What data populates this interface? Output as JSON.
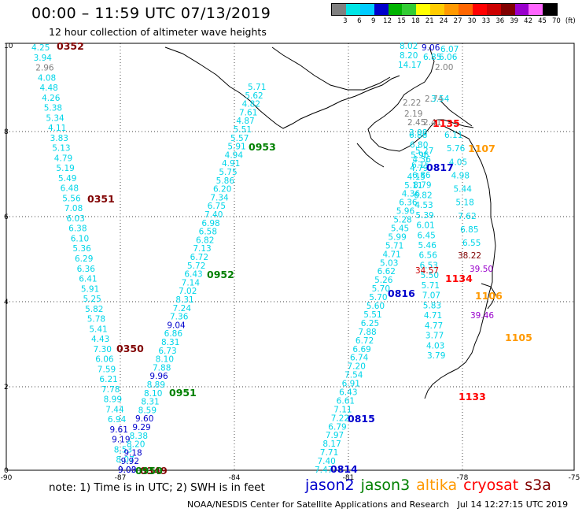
{
  "header": {
    "title": "00:00 – 11:59 UTC 07/13/2019",
    "subtitle": "12 hour collection of altimeter wave heights"
  },
  "color_scale": {
    "labels": [
      "3",
      "6",
      "9",
      "12",
      "15",
      "18",
      "21",
      "24",
      "27",
      "30",
      "33",
      "36",
      "39",
      "42",
      "45",
      "70",
      "(ft)"
    ],
    "colors": [
      "#808080",
      "#00e5e5",
      "#00ccff",
      "#0000cc",
      "#00b300",
      "#33cc33",
      "#ffff00",
      "#ffcc00",
      "#ff9900",
      "#ff6600",
      "#ff0000",
      "#cc0000",
      "#800000",
      "#9900cc",
      "#ff66ff",
      "#000000"
    ]
  },
  "axes": {
    "lon_ticks": [
      "-90",
      "-87",
      "-84",
      "-81",
      "-78",
      "-75"
    ],
    "lat_ticks": [
      "10",
      "8",
      "6",
      "4",
      "2",
      "0"
    ]
  },
  "tracks": [
    {
      "id": "0352",
      "color": "#800000",
      "values": [
        "4.25",
        "3.94",
        "2.96",
        "4.08",
        "4.48",
        "4.26",
        "5.38",
        "5.34",
        "4.11",
        "3.83",
        "5.13",
        "4.79",
        "5.19",
        "5.49",
        "6.48",
        "5.56",
        "7.08",
        "6.03",
        "6.38",
        "6.10",
        "5.36",
        "6.29",
        "6.36",
        "6.41",
        "5.91",
        "5.25",
        "5.82",
        "5.78",
        "5.41",
        "4.43",
        "7.30",
        "6.06",
        "7.59",
        "6.21",
        "7.78",
        "8.99",
        "7.44",
        "6.94",
        "9.61",
        "9.19",
        "8.53",
        "8.07",
        "9.03"
      ]
    },
    {
      "id": "0351",
      "color": "#800000",
      "values": []
    },
    {
      "id": "0350",
      "color": "#800000",
      "values": []
    },
    {
      "id": "0349",
      "color": "#800000",
      "values": []
    },
    {
      "id": "0953",
      "color": "#008000",
      "values": [
        "5.71",
        "5.62",
        "4.82",
        "7.61",
        "4.87",
        "5.51",
        "5.57",
        "5.91",
        "4.94",
        "4.91",
        "5.75",
        "5.86",
        "6.20",
        "7.34",
        "6.75",
        "7.40",
        "6.98",
        "6.58",
        "6.82",
        "7.13",
        "6.72",
        "5.72",
        "6.43",
        "7.14",
        "7.02",
        "8.31",
        "7.24",
        "7.36",
        "9.04",
        "6.86",
        "8.31",
        "6.73",
        "8.10",
        "7.88",
        "9.96",
        "8.89",
        "8.10",
        "8.31",
        "8.59",
        "9.60",
        "9.29",
        "8.38",
        "8.20",
        "9.18",
        "9.92",
        "9.00"
      ]
    },
    {
      "id": "0952",
      "color": "#008000",
      "values": []
    },
    {
      "id": "0951",
      "color": "#008000",
      "values": []
    },
    {
      "id": "0950",
      "color": "#008000",
      "values": []
    },
    {
      "id": "0815",
      "color": "#0000cc",
      "values": [
        "7.47",
        "7.40",
        "7.71",
        "8.17",
        "7.97",
        "6.79",
        "7.22",
        "7.11",
        "6.61",
        "6.43",
        "6.91",
        "7.54",
        "7.20",
        "6.74",
        "6.69",
        "6.72",
        "7.88",
        "6.25",
        "5.51",
        "5.60",
        "5.70",
        "5.70",
        "5.26",
        "6.62",
        "5.03",
        "4.71",
        "5.71",
        "5.99",
        "5.45",
        "5.28",
        "5.96",
        "6.36",
        "4.36",
        "5.11",
        "4.15",
        "4.79",
        "4.36",
        "5.27"
      ]
    },
    {
      "id": "0816",
      "color": "#0000cc",
      "values": [
        "3.79",
        "4.03",
        "3.77",
        "4.77",
        "4.71",
        "5.83",
        "7.07",
        "5.71",
        "5.50",
        "6.53",
        "6.56",
        "5.46",
        "6.45",
        "6.01",
        "5.39",
        "4.53",
        "6.82",
        "8.79",
        "6.86",
        "6.15",
        "5.96",
        "6.80",
        "6.88"
      ]
    },
    {
      "id": "0817",
      "color": "#0000cc",
      "values": [
        "6.11",
        "5.76",
        "4.05",
        "4.98",
        "5.44",
        "5.18",
        "7.62",
        "6.85",
        "6.55"
      ]
    },
    {
      "id": "0814",
      "color": "#0000cc",
      "values": []
    },
    {
      "id": "1107",
      "color": "#ff9900",
      "values": []
    },
    {
      "id": "1106",
      "color": "#ff9900",
      "values": []
    },
    {
      "id": "1105",
      "color": "#ff9900",
      "values": []
    },
    {
      "id": "1135",
      "color": "#ff0000",
      "values": []
    },
    {
      "id": "1134",
      "color": "#ff0000",
      "values": [
        "38.22",
        "34.57",
        "39.50",
        "39.46"
      ]
    },
    {
      "id": "1133",
      "color": "#ff0000",
      "values": []
    }
  ],
  "north_cluster": {
    "values": [
      "8.02",
      "9.06",
      "6.07",
      "8.20",
      "6.85",
      "6.06",
      "14.17",
      "2.00",
      "2.22",
      "2.74",
      "3.54",
      "2.19",
      "2.45",
      "2.41",
      "3.08"
    ]
  },
  "footer": {
    "note": "note:  1) Time is in UTC;  2) SWH is in feet",
    "satellites": [
      {
        "name": "jason2",
        "color": "#0000cc"
      },
      {
        "name": "jason3",
        "color": "#008000"
      },
      {
        "name": "altika",
        "color": "#ff9900"
      },
      {
        "name": "cryosat",
        "color": "#ff0000"
      },
      {
        "name": "s3a",
        "color": "#800000"
      }
    ],
    "credit": "NOAA/NESDIS Center for Satellite Applications and Research   Jul 14 12:27:15 UTC 2019"
  }
}
